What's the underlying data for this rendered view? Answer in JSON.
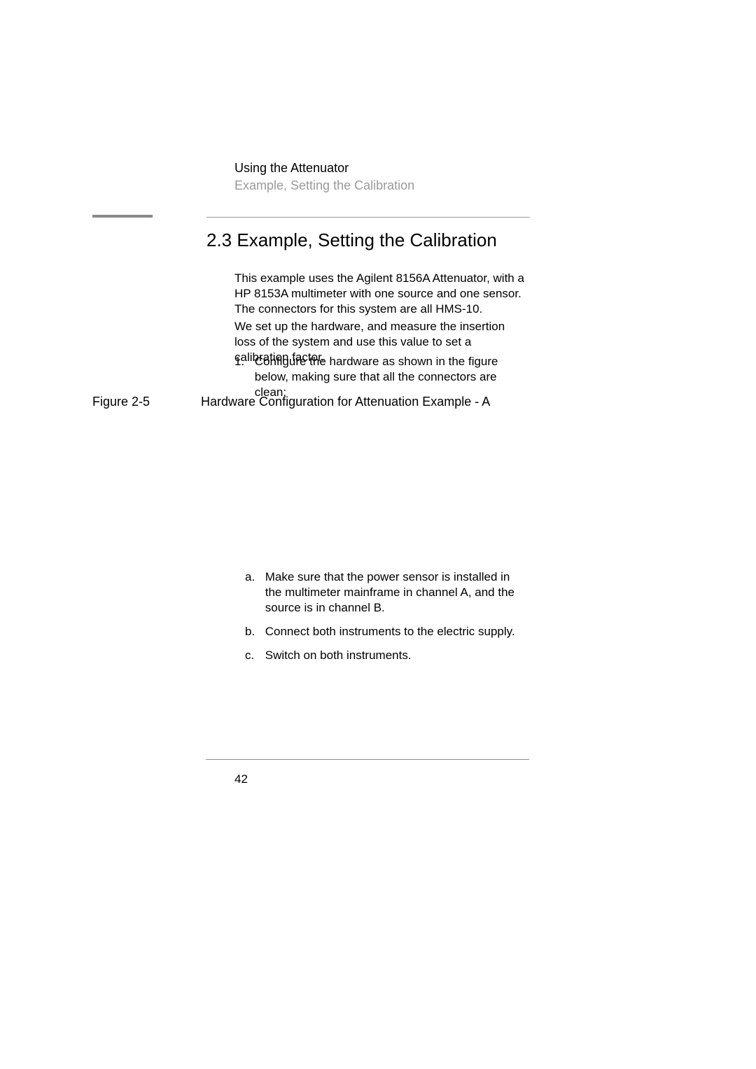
{
  "header": {
    "chapter": "Using the Attenuator",
    "section": "Example, Setting the Calibration"
  },
  "heading": "2.3 Example, Setting the Calibration",
  "paragraphs": {
    "p1": "This example uses the Agilent 8156A Attenuator, with a HP 8153A multimeter with one source and one sensor. The connectors for this system are all HMS-10.",
    "p2": "We set up the hardware, and measure the insertion loss of the system and use this value to set a calibration factor."
  },
  "numbered": {
    "marker": "1.",
    "text": "Configure the hardware as shown in the figure below, making sure that all the connectors are clean:"
  },
  "figure": {
    "label": "Figure 2-5",
    "caption": "Hardware Configuration for Attenuation Example - A"
  },
  "sublist": [
    {
      "marker": "a.",
      "text": "Make sure that the power sensor is installed in the multimeter mainframe in channel A, and the source is in channel B."
    },
    {
      "marker": "b.",
      "text": "Connect both instruments to the electric supply."
    },
    {
      "marker": "c.",
      "text": "Switch on both instruments."
    }
  ],
  "pageNumber": "42",
  "colors": {
    "text": "#000000",
    "muted": "#9a9a9a",
    "rule": "#8a8a8a",
    "background": "#ffffff"
  },
  "fonts": {
    "body_size_pt": 12,
    "heading_size_pt": 19,
    "family": "Arial"
  }
}
